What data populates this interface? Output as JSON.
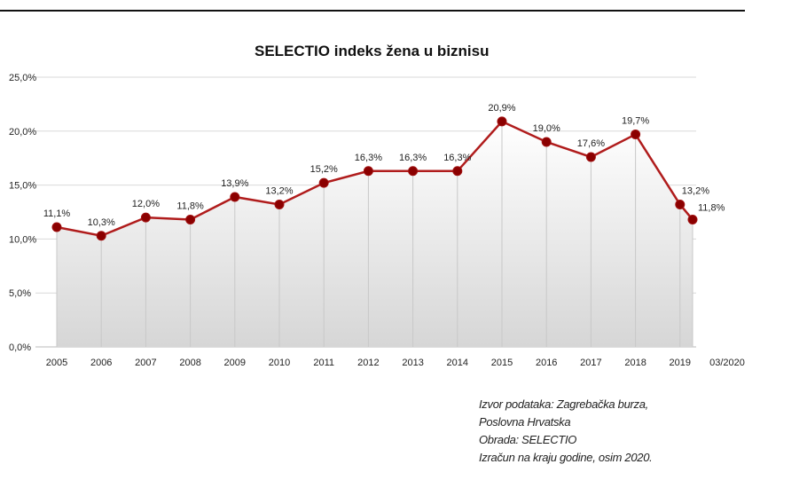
{
  "chart_data": {
    "type": "line",
    "title": "SELECTIO indeks žena u biznisu",
    "categories": [
      "2005",
      "2006",
      "2007",
      "2008",
      "2009",
      "2010",
      "2011",
      "2012",
      "2013",
      "2014",
      "2015",
      "2016",
      "2017",
      "2018",
      "2019",
      "03/2020"
    ],
    "values": [
      11.1,
      10.3,
      12.0,
      11.8,
      13.9,
      13.2,
      15.2,
      16.3,
      16.3,
      16.3,
      20.9,
      19.0,
      17.6,
      19.7,
      13.2,
      11.8
    ],
    "data_labels": [
      "11,1%",
      "10,3%",
      "12,0%",
      "11,8%",
      "13,9%",
      "13,2%",
      "15,2%",
      "16,3%",
      "16,3%",
      "16,3%",
      "20,9%",
      "19,0%",
      "17,6%",
      "19,7%",
      "13,2%",
      "11,8%"
    ],
    "y_ticks": [
      "0,0%",
      "5,0%",
      "10,0%",
      "15,0%",
      "20,0%",
      "25,0%"
    ],
    "ylim": [
      0,
      25
    ],
    "xlabel": "",
    "ylabel": "",
    "grid": true,
    "line_color": "#b01c1c",
    "marker_color": "#8b0000"
  },
  "notes": [
    "Izvor podataka: Zagrebačka burza,",
    "Poslovna Hrvatska",
    "Obrada: SELECTIO",
    "Izračun na kraju godine, osim 2020."
  ]
}
